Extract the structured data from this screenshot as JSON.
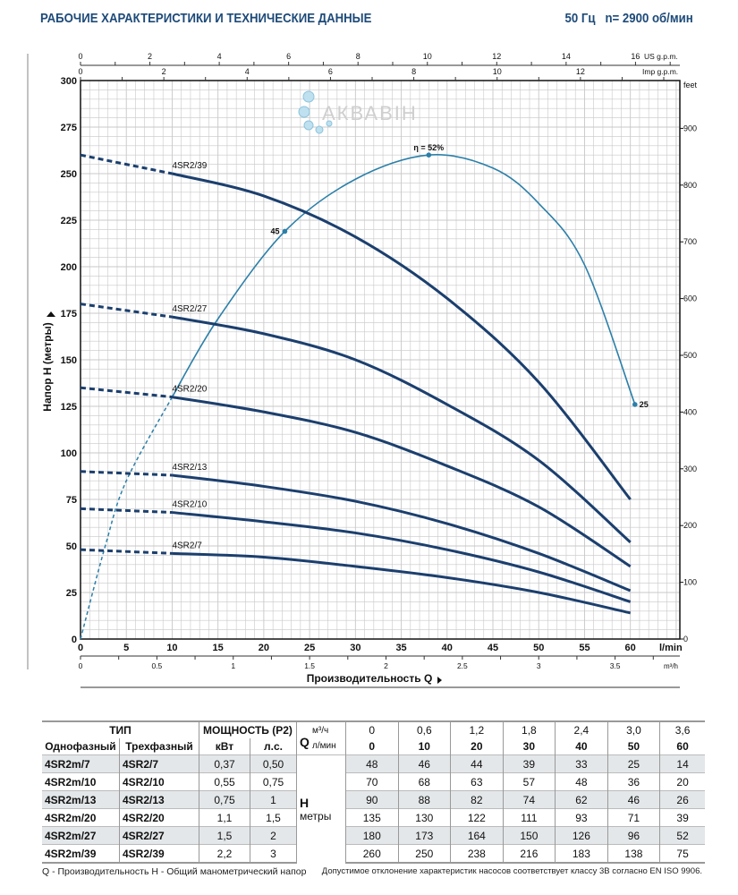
{
  "header": {
    "title": "РАБОЧИЕ ХАРАКТЕРИСТИКИ И ТЕХНИЧЕСКИЕ ДАННЫЕ",
    "frequency": "50 Гц",
    "speed": "n= 2900 об/мин"
  },
  "watermark": "АКВАВІН",
  "colors": {
    "title": "#1d4a78",
    "curves": "#1b3f6e",
    "efficiency": "#2b7fa9",
    "grid": "#c8c8c8"
  },
  "chart_data": {
    "type": "line",
    "xlabel": "Производительность Q",
    "ylabel": "Напор H (метры)",
    "x_unit": "l/min",
    "x_ticks": [
      0,
      5,
      10,
      15,
      20,
      25,
      30,
      35,
      40,
      45,
      50,
      55,
      60
    ],
    "xlim": [
      0,
      65.4
    ],
    "ylim": [
      0,
      300
    ],
    "y_ticks": [
      0,
      25,
      50,
      75,
      100,
      125,
      150,
      175,
      200,
      225,
      250,
      275,
      300
    ],
    "secondary_axes": {
      "top_us": {
        "label": "US g.p.m.",
        "ticks": [
          0,
          2,
          4,
          6,
          8,
          10,
          12,
          14,
          16
        ]
      },
      "top_imp": {
        "label": "Imp g.p.m.",
        "ticks": [
          0,
          2,
          4,
          6,
          8,
          10,
          12
        ]
      },
      "right_feet": {
        "label": "feet",
        "ticks": [
          0,
          100,
          200,
          300,
          400,
          500,
          600,
          700,
          800,
          900
        ]
      },
      "bottom_m3h": {
        "label": "m³/h",
        "ticks": [
          "0",
          "0.5",
          "1",
          "1.5",
          "2",
          "2.5",
          "3",
          "3.5"
        ]
      }
    },
    "grid": true,
    "x": [
      0,
      10,
      20,
      30,
      40,
      50,
      60
    ],
    "series": [
      {
        "name": "4SR2/7",
        "values": [
          48,
          46,
          44,
          39,
          33,
          25,
          14
        ]
      },
      {
        "name": "4SR2/10",
        "values": [
          70,
          68,
          63,
          57,
          48,
          36,
          20
        ]
      },
      {
        "name": "4SR2/13",
        "values": [
          90,
          88,
          82,
          74,
          62,
          46,
          26
        ]
      },
      {
        "name": "4SR2/20",
        "values": [
          135,
          130,
          122,
          111,
          93,
          71,
          39
        ]
      },
      {
        "name": "4SR2/27",
        "values": [
          180,
          173,
          164,
          150,
          126,
          96,
          52
        ]
      },
      {
        "name": "4SR2/39",
        "values": [
          260,
          250,
          238,
          216,
          183,
          138,
          75
        ]
      }
    ],
    "efficiency_curve": {
      "points": [
        [
          0,
          0
        ],
        [
          2.7,
          50
        ],
        [
          5,
          85
        ],
        [
          10,
          130
        ],
        [
          15,
          172
        ],
        [
          22.3,
          219
        ],
        [
          30,
          247
        ],
        [
          38,
          260
        ],
        [
          45,
          253
        ],
        [
          50,
          234
        ],
        [
          55,
          201
        ],
        [
          60.5,
          126
        ]
      ],
      "labels": [
        {
          "q": 22.3,
          "text": "45"
        },
        {
          "q": 38,
          "text": "η = 52%"
        },
        {
          "q": 60.5,
          "text": "25"
        }
      ]
    }
  },
  "table": {
    "head": {
      "type": "ТИП",
      "power": "МОЩНОСТЬ (P2)",
      "q": "Q",
      "m3h": "м³/ч",
      "lmin": "л/мин",
      "single": "Однофазный",
      "three": "Трехфазный",
      "kw": "кВт",
      "hp": "л.с.",
      "h": "H",
      "h_unit": "метры"
    },
    "q_m3h": [
      "0",
      "0,6",
      "1,2",
      "1,8",
      "2,4",
      "3,0",
      "3,6"
    ],
    "q_lmin": [
      "0",
      "10",
      "20",
      "30",
      "40",
      "50",
      "60"
    ],
    "rows": [
      {
        "single": "4SR2m/7",
        "three": "4SR2/7",
        "kw": "0,37",
        "hp": "0,50",
        "h": [
          "48",
          "46",
          "44",
          "39",
          "33",
          "25",
          "14"
        ]
      },
      {
        "single": "4SR2m/10",
        "three": "4SR2/10",
        "kw": "0,55",
        "hp": "0,75",
        "h": [
          "70",
          "68",
          "63",
          "57",
          "48",
          "36",
          "20"
        ]
      },
      {
        "single": "4SR2m/13",
        "three": "4SR2/13",
        "kw": "0,75",
        "hp": "1",
        "h": [
          "90",
          "88",
          "82",
          "74",
          "62",
          "46",
          "26"
        ]
      },
      {
        "single": "4SR2m/20",
        "three": "4SR2/20",
        "kw": "1,1",
        "hp": "1,5",
        "h": [
          "135",
          "130",
          "122",
          "111",
          "93",
          "71",
          "39"
        ]
      },
      {
        "single": "4SR2m/27",
        "three": "4SR2/27",
        "kw": "1,5",
        "hp": "2",
        "h": [
          "180",
          "173",
          "164",
          "150",
          "126",
          "96",
          "52"
        ]
      },
      {
        "single": "4SR2m/39",
        "three": "4SR2/39",
        "kw": "2,2",
        "hp": "3",
        "h": [
          "260",
          "250",
          "238",
          "216",
          "183",
          "138",
          "75"
        ]
      }
    ]
  },
  "footer": {
    "left": "Q - Производительность   H - Общий манометрический напор",
    "right": "Допустимое отклонение характеристик насосов соответствует классу 3В согласно EN ISO 9906."
  }
}
